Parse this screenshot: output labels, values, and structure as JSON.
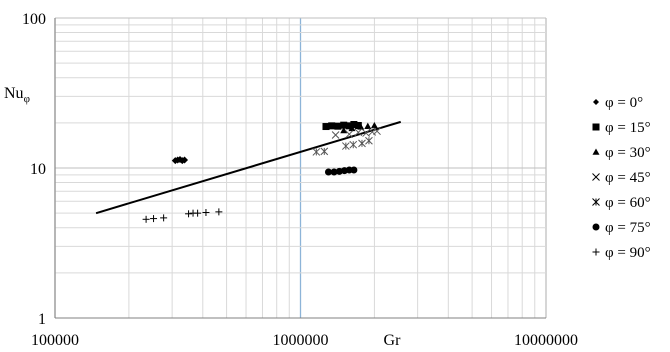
{
  "chart_data": {
    "type": "scatter",
    "title": "",
    "xlabel": "Gr",
    "ylabel": "Nu",
    "ylabel_subscript": "φ",
    "x_scale": "log",
    "y_scale": "log",
    "xlim": [
      100000,
      10000000
    ],
    "ylim": [
      1,
      100
    ],
    "x_ticks": [
      "100000",
      "1000000",
      "10000000"
    ],
    "y_ticks": [
      "1",
      "10",
      "100"
    ],
    "grid": true,
    "legend_position": "right",
    "series": [
      {
        "name": "φ = 0°",
        "marker": "diamond",
        "color": "#000000",
        "points": [
          [
            309000,
            11.2
          ],
          [
            316000,
            11.3
          ],
          [
            323000,
            11.4
          ],
          [
            330000,
            11.2
          ],
          [
            337000,
            11.3
          ]
        ]
      },
      {
        "name": "φ = 15°",
        "marker": "square",
        "color": "#000000",
        "points": [
          [
            1270000,
            18.9
          ],
          [
            1340000,
            19.1
          ],
          [
            1420000,
            19.0
          ],
          [
            1500000,
            19.3
          ],
          [
            1580000,
            19.1
          ],
          [
            1650000,
            19.5
          ],
          [
            1720000,
            19.2
          ]
        ]
      },
      {
        "name": "φ = 30°",
        "marker": "triangle",
        "color": "#000000",
        "points": [
          [
            1500000,
            17.8
          ],
          [
            1620000,
            18.4
          ],
          [
            1760000,
            18.8
          ],
          [
            1880000,
            19.0
          ],
          [
            2000000,
            19.2
          ]
        ]
      },
      {
        "name": "φ = 45°",
        "marker": "x",
        "color": "#555555",
        "points": [
          [
            1390000,
            16.6
          ],
          [
            1580000,
            16.8
          ],
          [
            1720000,
            17.3
          ],
          [
            1850000,
            17.1
          ],
          [
            1960000,
            17.4
          ],
          [
            2050000,
            17.6
          ]
        ]
      },
      {
        "name": "φ = 60°",
        "marker": "asterisk",
        "color": "#555555",
        "points": [
          [
            1160000,
            12.8
          ],
          [
            1250000,
            12.9
          ],
          [
            1530000,
            14.0
          ],
          [
            1640000,
            14.3
          ],
          [
            1780000,
            14.6
          ],
          [
            1900000,
            15.2
          ]
        ]
      },
      {
        "name": "φ = 75°",
        "marker": "circle",
        "color": "#000000",
        "points": [
          [
            1300000,
            9.4
          ],
          [
            1370000,
            9.4
          ],
          [
            1440000,
            9.5
          ],
          [
            1510000,
            9.6
          ],
          [
            1580000,
            9.7
          ],
          [
            1650000,
            9.7
          ]
        ]
      },
      {
        "name": "φ = 90°",
        "marker": "plus",
        "color": "#000000",
        "points": [
          [
            235000,
            4.55
          ],
          [
            252000,
            4.6
          ],
          [
            277000,
            4.65
          ],
          [
            350000,
            4.95
          ],
          [
            365000,
            5.0
          ],
          [
            381000,
            5.0
          ],
          [
            412000,
            5.05
          ],
          [
            465000,
            5.1
          ]
        ]
      }
    ],
    "trendline": {
      "points": [
        [
          147000,
          5.0
        ],
        [
          2560000,
          20.3
        ]
      ]
    }
  }
}
